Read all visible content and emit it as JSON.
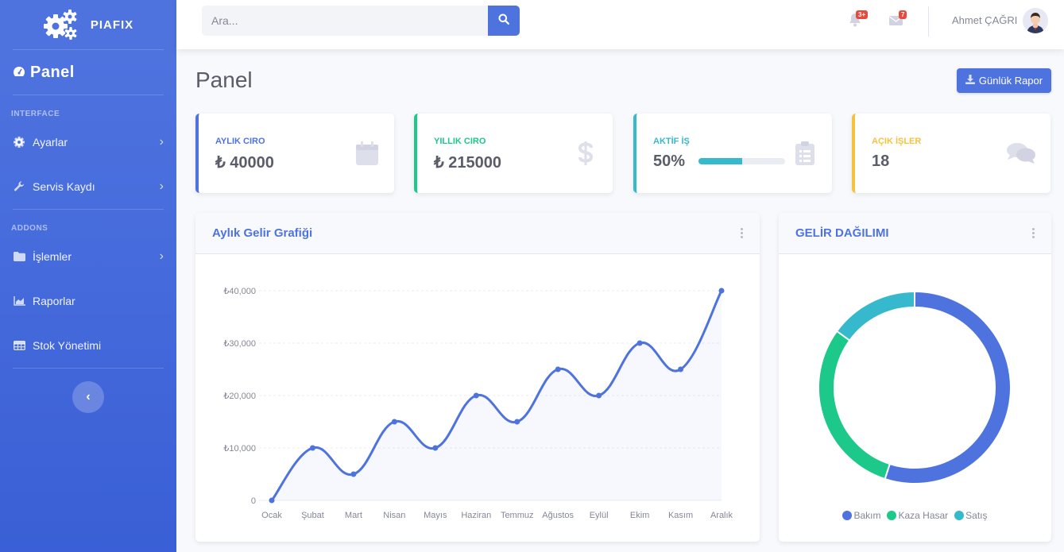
{
  "brand": {
    "name": "PIAFIX"
  },
  "sidebar": {
    "dashboard_label": "Panel",
    "heading_interface": "INTERFACE",
    "heading_addons": "ADDONS",
    "items": [
      {
        "label": "Ayarlar",
        "icon": "gear-icon",
        "has_submenu": true
      },
      {
        "label": "Servis Kaydı",
        "icon": "wrench-icon",
        "has_submenu": true
      },
      {
        "label": "İşlemler",
        "icon": "folder-icon",
        "has_submenu": true
      },
      {
        "label": "Raporlar",
        "icon": "chart-area-icon",
        "has_submenu": false
      },
      {
        "label": "Stok Yönetimi",
        "icon": "table-icon",
        "has_submenu": false
      }
    ],
    "toggle_glyph": "‹"
  },
  "topbar": {
    "search_placeholder": "Ara...",
    "alerts_badge": "3+",
    "messages_badge": "7",
    "user_name": "Ahmet ÇAĞRI"
  },
  "page": {
    "title": "Panel",
    "report_button": "Günlük Rapor"
  },
  "cards": [
    {
      "label": "AYLIK CIRO",
      "value": "₺ 40000",
      "color": "#4e73df",
      "icon": "calendar-icon"
    },
    {
      "label": "YILLIK CIRO",
      "value": "₺ 215000",
      "color": "#1cc88a",
      "icon": "dollar-icon"
    },
    {
      "label": "AKTİF İŞ",
      "value": "50%",
      "color": "#36b9cc",
      "icon": "clipboard-icon",
      "progress": 50
    },
    {
      "label": "AÇIK İŞLER",
      "value": "18",
      "color": "#f6c23e",
      "icon": "comments-icon"
    }
  ],
  "area_panel": {
    "title": "Aylık Gelir Grafiği"
  },
  "pie_panel": {
    "title": "GELİR DAĞILIMI"
  },
  "chart_data": [
    {
      "type": "line",
      "title": "Aylık Gelir Grafiği",
      "categories": [
        "Ocak",
        "Şubat",
        "Mart",
        "Nisan",
        "Mayıs",
        "Haziran",
        "Temmuz",
        "Ağustos",
        "Eylül",
        "Ekim",
        "Kasım",
        "Aralık"
      ],
      "values": [
        0,
        10000,
        5000,
        15000,
        10000,
        20000,
        15000,
        25000,
        20000,
        30000,
        25000,
        40000
      ],
      "y_ticks": [
        "0",
        "₺10,000",
        "₺20,000",
        "₺30,000",
        "₺40,000"
      ],
      "ylim": [
        0,
        40000
      ],
      "grid": true,
      "fill": true,
      "color": "#4e73df"
    },
    {
      "type": "pie",
      "title": "GELİR DAĞILIMI",
      "donut": true,
      "labels": [
        "Bakım",
        "Kaza Hasar",
        "Satış"
      ],
      "values": [
        55,
        30,
        15
      ],
      "colors": [
        "#4e73df",
        "#1cc88a",
        "#36b9cc"
      ],
      "legend": "bottom"
    }
  ]
}
